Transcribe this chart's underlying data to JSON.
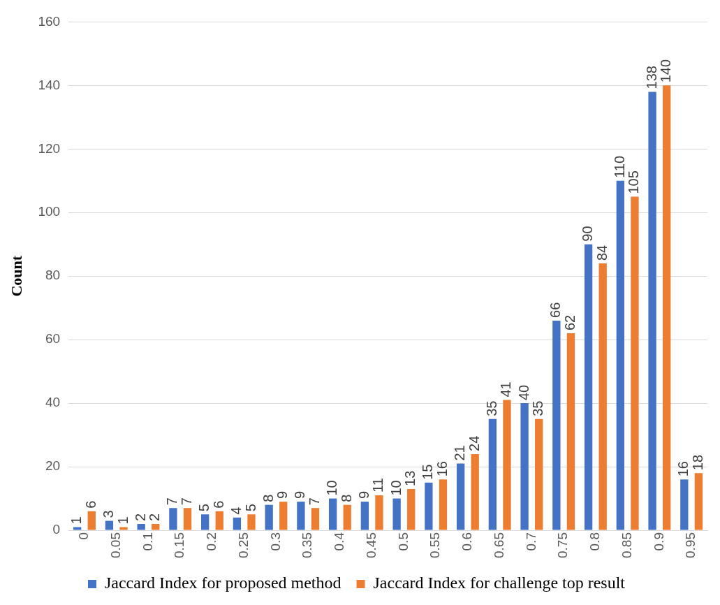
{
  "chart_data": {
    "type": "bar",
    "ylabel": "Count",
    "categories": [
      "0",
      "0.05",
      "0.1",
      "0.15",
      "0.2",
      "0.25",
      "0.3",
      "0.35",
      "0.4",
      "0.45",
      "0.5",
      "0.55",
      "0.6",
      "0.65",
      "0.7",
      "0.75",
      "0.8",
      "0.85",
      "0.9",
      "0.95"
    ],
    "series": [
      {
        "name": "Jaccard Index for proposed method",
        "color": "#4472c4",
        "values": [
          1,
          3,
          2,
          7,
          5,
          4,
          8,
          9,
          10,
          9,
          10,
          15,
          21,
          35,
          40,
          66,
          90,
          110,
          138,
          16
        ]
      },
      {
        "name": "Jaccard Index for challenge top result",
        "color": "#ed7d31",
        "values": [
          6,
          1,
          2,
          7,
          6,
          5,
          9,
          7,
          8,
          11,
          13,
          16,
          24,
          41,
          35,
          62,
          84,
          105,
          140,
          18
        ]
      }
    ],
    "ylim": [
      0,
      160
    ],
    "yticks": [
      0,
      20,
      40,
      60,
      80,
      100,
      120,
      140,
      160
    ],
    "grid": "y",
    "legend": "bottom",
    "data_labels": true
  }
}
